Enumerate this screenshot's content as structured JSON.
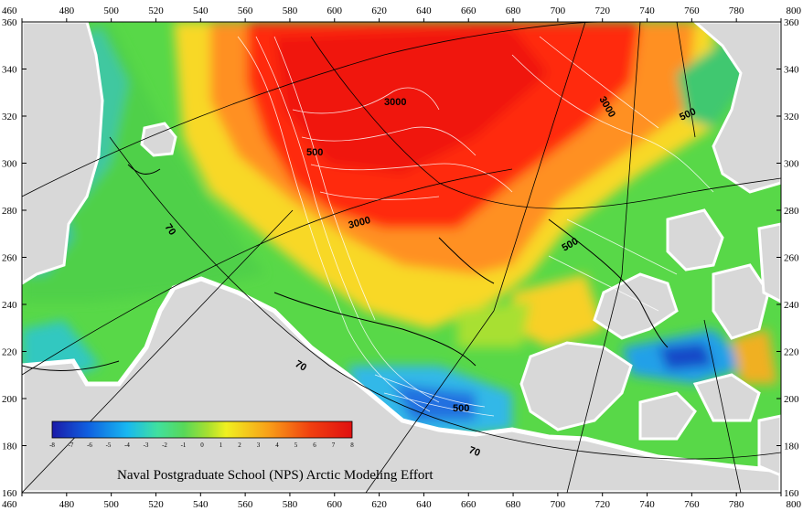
{
  "map": {
    "credit": "Naval Postgraduate School (NPS) Arctic Modeling Effort",
    "x_axis_ticks": [
      "460",
      "480",
      "500",
      "520",
      "540",
      "560",
      "580",
      "600",
      "620",
      "640",
      "660",
      "680",
      "700",
      "720",
      "740",
      "760",
      "780",
      "800"
    ],
    "y_axis_ticks": [
      "360",
      "340",
      "320",
      "300",
      "280",
      "260",
      "240",
      "220",
      "200",
      "180",
      "160"
    ],
    "colorbar": {
      "labels": [
        "-8",
        "-7",
        "-6",
        "-5",
        "-4",
        "-3",
        "-2",
        "-1",
        "0",
        "1",
        "2",
        "3",
        "4",
        "5",
        "6",
        "7",
        "8"
      ],
      "colors": [
        "#1a1aa8",
        "#1060e0",
        "#18b8f0",
        "#40e0a0",
        "#58d858",
        "#a8e030",
        "#f0f020",
        "#f8a018",
        "#f04010",
        "#e01010"
      ]
    },
    "contour_labels": [
      {
        "text": "3000",
        "color": "#000000"
      },
      {
        "text": "3000",
        "color": "#000000"
      },
      {
        "text": "500",
        "color": "#000000"
      },
      {
        "text": "500",
        "color": "#000000"
      },
      {
        "text": "3000",
        "color": "#000000"
      },
      {
        "text": "500",
        "color": "#000000"
      },
      {
        "text": "500",
        "color": "#000000"
      },
      {
        "text": "70",
        "color": "#000000"
      },
      {
        "text": "70",
        "color": "#000000"
      },
      {
        "text": "70",
        "color": "#000000"
      }
    ],
    "colors": {
      "land": "#d8d8d8",
      "coast_white": "#ffffff",
      "high": "#ff2a10",
      "mid_high": "#ff8c18",
      "mid": "#f8e828",
      "mid_low": "#60d848",
      "low": "#20b8f0",
      "very_low": "#2050d0"
    }
  }
}
